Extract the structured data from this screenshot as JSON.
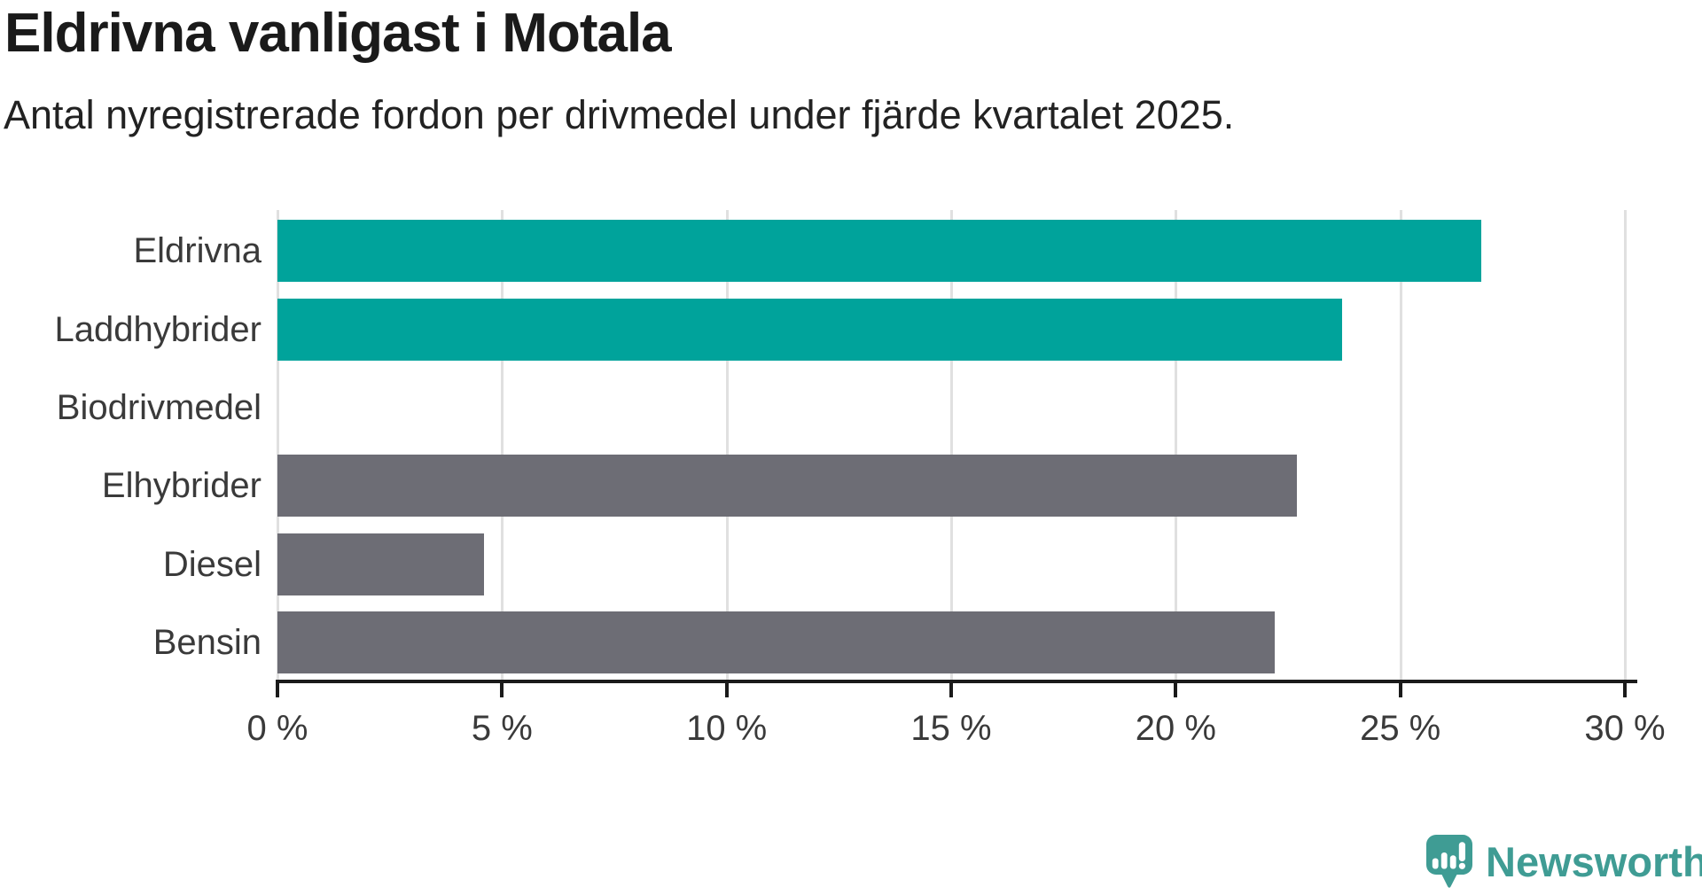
{
  "header": {
    "title": "Eldrivna vanligast i Motala",
    "subtitle": "Antal nyregistrerade fordon per drivmedel under fjärde kvartalet 2025."
  },
  "chart_data": {
    "type": "bar",
    "orientation": "horizontal",
    "title": "Eldrivna vanligast i Motala",
    "subtitle": "Antal nyregistrerade fordon per drivmedel under fjärde kvartalet 2025.",
    "categories": [
      "Eldrivna",
      "Laddhybrider",
      "Biodrivmedel",
      "Elhybrider",
      "Diesel",
      "Bensin"
    ],
    "values": [
      26.8,
      23.7,
      0,
      22.7,
      4.6,
      22.2
    ],
    "bar_colors": [
      "#00a39b",
      "#00a39b",
      "#00a39b",
      "#6d6d75",
      "#6d6d75",
      "#6d6d75"
    ],
    "unit": "%",
    "xlim": [
      0,
      30
    ],
    "x_ticks": [
      0,
      5,
      10,
      15,
      20,
      25,
      30
    ],
    "x_tick_suffix": " %",
    "grid": "vertical",
    "legend": "none",
    "xlabel": "",
    "ylabel": ""
  },
  "colors": {
    "teal": "#00a39b",
    "gray": "#6d6d75",
    "gridline": "#e0e0e0",
    "axis": "#1a1a1a",
    "label_text": "#3a3a3a",
    "logo": "#3f9c94"
  },
  "branding": {
    "logo_text": "Newsworthy"
  }
}
